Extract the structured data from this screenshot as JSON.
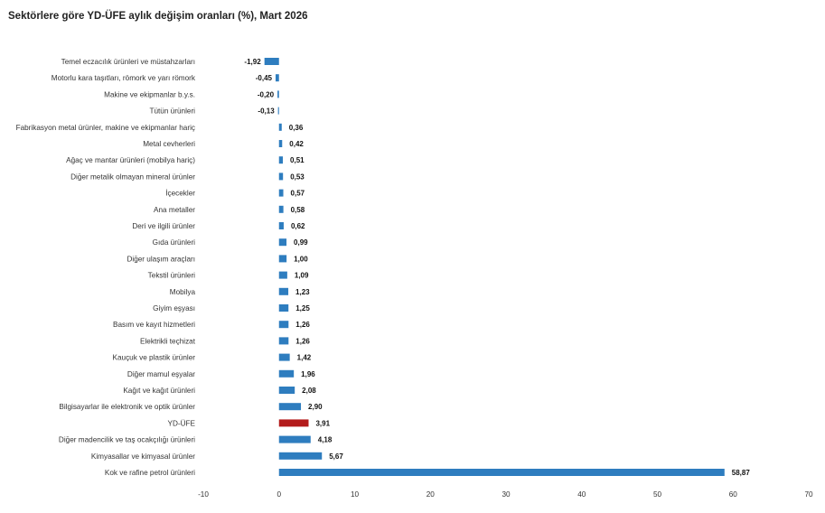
{
  "chart_data": {
    "type": "bar",
    "orientation": "horizontal",
    "title": "Sektörlere göre YD-ÜFE aylık değişim oranları (%), Mart 2026",
    "xlim": [
      -10,
      70
    ],
    "xticks": [
      "-10",
      "0",
      "10",
      "20",
      "30",
      "40",
      "50",
      "60",
      "70"
    ],
    "xtick_values": [
      -10,
      0,
      10,
      20,
      30,
      40,
      50,
      60,
      70
    ],
    "grid": false,
    "colors": {
      "default": "#2e7dbf",
      "highlight": "#b31b1b"
    },
    "highlight_category": "YD-ÜFE",
    "categories": [
      "Temel eczacılık ürünleri ve müstahzarları",
      "Motorlu kara taşıtları, römork ve yarı römork",
      "Makine ve ekipmanlar b.y.s.",
      "Tütün ürünleri",
      "Fabrikasyon metal ürünler, makine ve ekipmanlar hariç",
      "Metal cevherleri",
      "Ağaç ve mantar ürünleri (mobilya hariç)",
      "Diğer metalik olmayan mineral ürünler",
      "İçecekler",
      "Ana metaller",
      "Deri ve ilgili ürünler",
      "Gıda ürünleri",
      "Diğer ulaşım araçları",
      "Tekstil ürünleri",
      "Mobilya",
      "Giyim eşyası",
      "Basım ve kayıt hizmetleri",
      "Elektrikli teçhizat",
      "Kauçuk ve plastik ürünler",
      "Diğer mamul eşyalar",
      "Kağıt ve kağıt ürünleri",
      "Bilgisayarlar ile elektronik ve optik ürünler",
      "YD-ÜFE",
      "Diğer madencilik ve taş ocakçılığı ürünleri",
      "Kimyasallar ve kimyasal ürünler",
      "Kok ve rafine petrol ürünleri"
    ],
    "values": [
      -1.92,
      -0.45,
      -0.2,
      -0.13,
      0.36,
      0.42,
      0.51,
      0.53,
      0.57,
      0.58,
      0.62,
      0.99,
      1.0,
      1.09,
      1.23,
      1.25,
      1.26,
      1.26,
      1.42,
      1.96,
      2.08,
      2.9,
      3.91,
      4.18,
      5.67,
      58.87
    ],
    "value_labels": [
      "-1,92",
      "-0,45",
      "-0,20",
      "-0,13",
      "0,36",
      "0,42",
      "0,51",
      "0,53",
      "0,57",
      "0,58",
      "0,62",
      "0,99",
      "1,00",
      "1,09",
      "1,23",
      "1,25",
      "1,26",
      "1,26",
      "1,42",
      "1,96",
      "2,08",
      "2,90",
      "3,91",
      "4,18",
      "5,67",
      "58,87"
    ]
  }
}
